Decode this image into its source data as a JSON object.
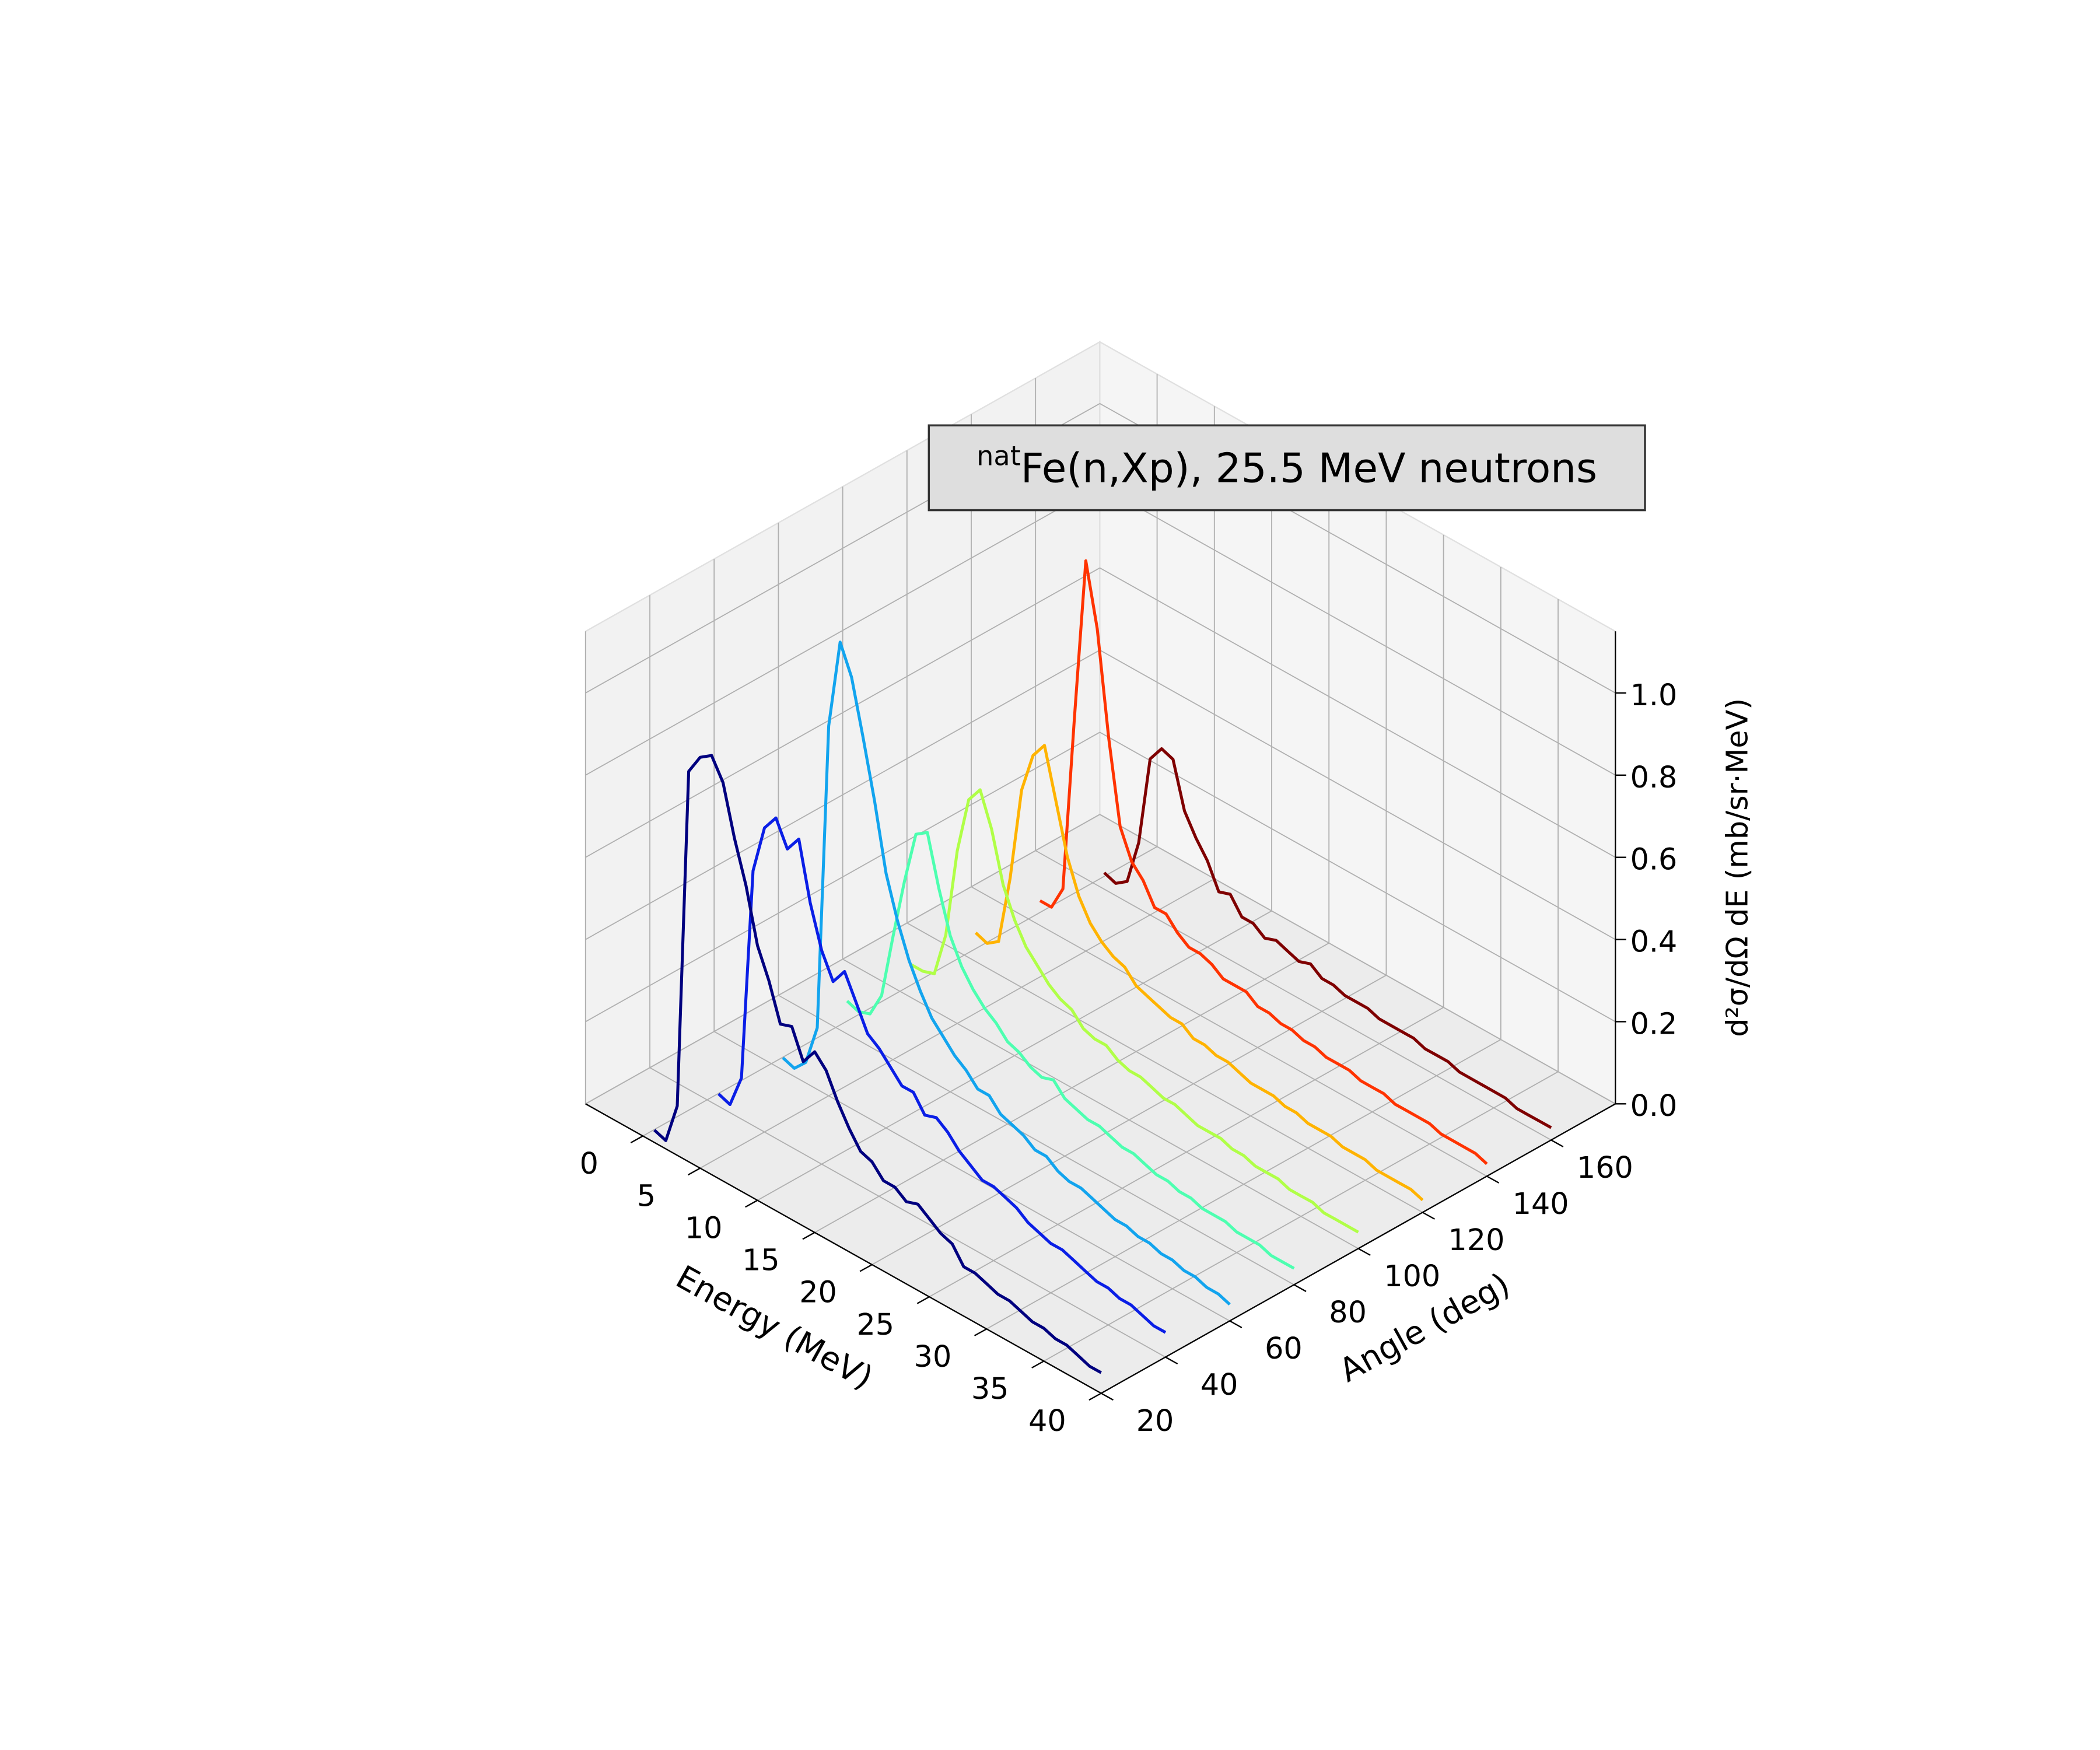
{
  "chart_data": {
    "type": "line3d",
    "title_superscript": "nat",
    "title": "Fe(n,Xp), 25.5 MeV neutrons",
    "xlabel": "Energy (MeV)",
    "ylabel": "Angle (deg)",
    "zlabel": "d²σ/dΩ dE (mb/sr·MeV)",
    "xlim": [
      -5,
      40
    ],
    "ylim": [
      20,
      180
    ],
    "zlim": [
      0,
      1.15
    ],
    "xticks": [
      0,
      5,
      10,
      15,
      20,
      25,
      30,
      35,
      40
    ],
    "yticks": [
      20,
      40,
      60,
      80,
      100,
      120,
      140,
      160
    ],
    "zticks": [
      {
        "value": 0,
        "label": "0.0"
      },
      0.2,
      0.4,
      0.6,
      0.8,
      {
        "value": 1,
        "label": "1.0"
      }
    ],
    "grid": true,
    "x": [
      1,
      2,
      3,
      4,
      5,
      6,
      7,
      8,
      9,
      10,
      11,
      12,
      13,
      14,
      15,
      16,
      17,
      18,
      19,
      20,
      21,
      22,
      23,
      24,
      25,
      26,
      27,
      28,
      29,
      30,
      31,
      32,
      33,
      34,
      35,
      36,
      37,
      38,
      39,
      40
    ],
    "series": [
      {
        "angle": 20,
        "color": "#00007f",
        "values": [
          0.03,
          0.02,
          0.12,
          0.95,
          1.0,
          1.02,
          0.97,
          0.85,
          0.75,
          0.62,
          0.55,
          0.46,
          0.47,
          0.4,
          0.44,
          0.41,
          0.35,
          0.3,
          0.26,
          0.25,
          0.22,
          0.22,
          0.2,
          0.21,
          0.19,
          0.17,
          0.16,
          0.12,
          0.12,
          0.11,
          0.1,
          0.1,
          0.09,
          0.08,
          0.08,
          0.07,
          0.07,
          0.06,
          0.05,
          0.05
        ]
      },
      {
        "angle": 40,
        "color": "#0a1ee6",
        "values": [
          0.03,
          0.02,
          0.1,
          0.62,
          0.74,
          0.78,
          0.72,
          0.76,
          0.62,
          0.52,
          0.46,
          0.5,
          0.44,
          0.38,
          0.36,
          0.33,
          0.3,
          0.3,
          0.26,
          0.27,
          0.25,
          0.22,
          0.2,
          0.18,
          0.18,
          0.17,
          0.16,
          0.14,
          0.13,
          0.12,
          0.12,
          0.11,
          0.1,
          0.09,
          0.09,
          0.08,
          0.08,
          0.07,
          0.06,
          0.06
        ]
      },
      {
        "angle": 60,
        "color": "#12a4ee",
        "values": [
          0.03,
          0.02,
          0.05,
          0.15,
          0.9,
          1.12,
          1.05,
          0.92,
          0.78,
          0.62,
          0.52,
          0.44,
          0.38,
          0.33,
          0.3,
          0.27,
          0.25,
          0.22,
          0.22,
          0.19,
          0.18,
          0.17,
          0.15,
          0.15,
          0.13,
          0.12,
          0.12,
          0.11,
          0.1,
          0.09,
          0.09,
          0.08,
          0.08,
          0.07,
          0.07,
          0.06,
          0.06,
          0.05,
          0.05,
          0.04
        ]
      },
      {
        "angle": 80,
        "color": "#4dffb0",
        "values": [
          0.08,
          0.07,
          0.08,
          0.14,
          0.3,
          0.45,
          0.58,
          0.6,
          0.48,
          0.38,
          0.32,
          0.28,
          0.25,
          0.23,
          0.2,
          0.19,
          0.17,
          0.16,
          0.17,
          0.14,
          0.13,
          0.12,
          0.12,
          0.11,
          0.1,
          0.1,
          0.09,
          0.08,
          0.08,
          0.07,
          0.07,
          0.06,
          0.06,
          0.06,
          0.05,
          0.05,
          0.05,
          0.04,
          0.04,
          0.04
        ]
      },
      {
        "angle": 100,
        "color": "#b0ff47",
        "values": [
          0.08,
          0.08,
          0.09,
          0.2,
          0.42,
          0.56,
          0.6,
          0.52,
          0.4,
          0.33,
          0.28,
          0.25,
          0.22,
          0.2,
          0.19,
          0.16,
          0.15,
          0.15,
          0.13,
          0.12,
          0.12,
          0.11,
          0.1,
          0.1,
          0.09,
          0.08,
          0.08,
          0.08,
          0.07,
          0.07,
          0.06,
          0.06,
          0.06,
          0.05,
          0.05,
          0.05,
          0.04,
          0.04,
          0.04,
          0.04
        ]
      },
      {
        "angle": 120,
        "color": "#ffb300",
        "values": [
          0.07,
          0.06,
          0.08,
          0.25,
          0.48,
          0.58,
          0.62,
          0.5,
          0.38,
          0.3,
          0.25,
          0.22,
          0.2,
          0.19,
          0.16,
          0.15,
          0.14,
          0.13,
          0.13,
          0.11,
          0.11,
          0.1,
          0.1,
          0.09,
          0.08,
          0.08,
          0.08,
          0.07,
          0.07,
          0.06,
          0.06,
          0.06,
          0.05,
          0.05,
          0.05,
          0.04,
          0.04,
          0.04,
          0.04,
          0.03
        ]
      },
      {
        "angle": 140,
        "color": "#ff3300",
        "values": [
          0.06,
          0.06,
          0.12,
          0.55,
          0.95,
          0.8,
          0.55,
          0.35,
          0.28,
          0.25,
          0.2,
          0.2,
          0.17,
          0.15,
          0.15,
          0.14,
          0.12,
          0.12,
          0.12,
          0.1,
          0.1,
          0.09,
          0.09,
          0.08,
          0.08,
          0.07,
          0.07,
          0.07,
          0.06,
          0.06,
          0.06,
          0.05,
          0.05,
          0.05,
          0.05,
          0.04,
          0.04,
          0.04,
          0.04,
          0.03
        ]
      },
      {
        "angle": 160,
        "color": "#7f0000",
        "values": [
          0.04,
          0.03,
          0.05,
          0.16,
          0.38,
          0.42,
          0.41,
          0.3,
          0.25,
          0.21,
          0.15,
          0.16,
          0.12,
          0.12,
          0.1,
          0.11,
          0.1,
          0.09,
          0.1,
          0.08,
          0.08,
          0.07,
          0.07,
          0.07,
          0.06,
          0.06,
          0.06,
          0.06,
          0.05,
          0.05,
          0.05,
          0.04,
          0.04,
          0.04,
          0.04,
          0.04,
          0.03,
          0.03,
          0.03,
          0.03
        ]
      }
    ]
  }
}
